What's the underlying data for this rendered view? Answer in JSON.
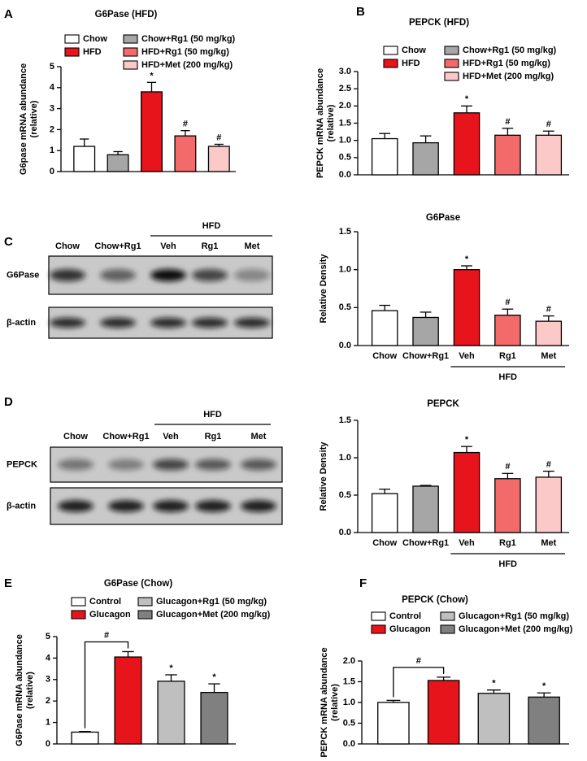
{
  "chart_data": [
    {
      "type": "bar",
      "panel": "A",
      "title": "G6Pase (HFD)",
      "ylabel": [
        "G6pase mRNA abundance",
        "(relative)"
      ],
      "categories": [
        "Chow",
        "Chow+Rg1 (50 mg/kg)",
        "HFD",
        "HFD+Rg1 (50 mg/kg)",
        "HFD+Met (200 mg/kg)"
      ],
      "values": [
        1.2,
        0.8,
        3.8,
        1.7,
        1.2
      ],
      "errors": [
        0.35,
        0.15,
        0.45,
        0.25,
        0.1
      ],
      "markers": [
        null,
        null,
        "*",
        "#",
        "#"
      ],
      "colors": [
        "#ffffff",
        "#a6a6a6",
        "#e8141c",
        "#f26a6a",
        "#fcc9c9"
      ],
      "ylim": [
        0,
        5
      ],
      "yticks": [
        0,
        1,
        2,
        3,
        4,
        5
      ],
      "legend": true
    },
    {
      "type": "bar",
      "panel": "B",
      "title": "PEPCK (HFD)",
      "ylabel": [
        "PEPCK mRNA abundance",
        "(relative)"
      ],
      "categories": [
        "Chow",
        "Chow+Rg1 (50 mg/kg)",
        "HFD",
        "HFD+Rg1 (50 mg/kg)",
        "HFD+Met (200 mg/kg)"
      ],
      "values": [
        1.05,
        0.93,
        1.8,
        1.15,
        1.15
      ],
      "errors": [
        0.15,
        0.2,
        0.2,
        0.2,
        0.12
      ],
      "markers": [
        null,
        null,
        "*",
        "#",
        "#"
      ],
      "colors": [
        "#ffffff",
        "#a6a6a6",
        "#e8141c",
        "#f26a6a",
        "#fcc9c9"
      ],
      "ylim": [
        0,
        3
      ],
      "yticks": [
        {
          "value": 0,
          "label": "0.0"
        },
        0.5,
        {
          "value": 1,
          "label": "1.0"
        },
        1.5,
        {
          "value": 2,
          "label": "2.0"
        },
        2.5,
        {
          "value": 3,
          "label": "3.0"
        }
      ],
      "legend": true
    },
    {
      "type": "bar",
      "title": "G6Pase",
      "ylabel": [
        "Relative Density"
      ],
      "group_label": "HFD",
      "categories": [
        "Chow",
        "Chow+Rg1",
        "Veh",
        "Rg1",
        "Met"
      ],
      "values": [
        0.46,
        0.37,
        1.0,
        0.4,
        0.32
      ],
      "errors": [
        0.07,
        0.07,
        0.05,
        0.08,
        0.07
      ],
      "markers": [
        null,
        null,
        "*",
        "#",
        "#"
      ],
      "colors": [
        "#ffffff",
        "#a6a6a6",
        "#e8141c",
        "#f26a6a",
        "#fcc9c9"
      ],
      "ylim": [
        0,
        1.5
      ],
      "yticks": [
        {
          "value": 0,
          "label": "0.0"
        },
        0.5,
        {
          "value": 1,
          "label": "1.0"
        },
        1.5
      ],
      "legend": false
    },
    {
      "type": "bar",
      "title": "PEPCK",
      "ylabel": [
        "Relative Density"
      ],
      "group_label": "HFD",
      "categories": [
        "Chow",
        "Chow+Rg1",
        "Veh",
        "Rg1",
        "Met"
      ],
      "values": [
        0.52,
        0.62,
        1.07,
        0.72,
        0.74
      ],
      "errors": [
        0.06,
        0.01,
        0.08,
        0.07,
        0.08
      ],
      "markers": [
        null,
        null,
        "*",
        "#",
        "#"
      ],
      "colors": [
        "#ffffff",
        "#a6a6a6",
        "#e8141c",
        "#f26a6a",
        "#fcc9c9"
      ],
      "ylim": [
        0,
        1.5
      ],
      "yticks": [
        {
          "value": 0,
          "label": "0.0"
        },
        0.5,
        {
          "value": 1,
          "label": "1.0"
        },
        1.5
      ],
      "legend": false
    },
    {
      "type": "bar",
      "panel": "E",
      "title": "G6Pase (Chow)",
      "ylabel": [
        "G6Pase mRNA abundance",
        "(relative)"
      ],
      "categories": [
        "Control",
        "Glucagon",
        "Glucagon+Rg1 (50 mg/kg)",
        "Glucagon+Met (200 mg/kg)"
      ],
      "values": [
        0.55,
        4.05,
        2.92,
        2.4
      ],
      "errors": [
        0.03,
        0.25,
        0.3,
        0.4
      ],
      "markers": [
        null,
        null,
        "*",
        "*"
      ],
      "comparison": "#",
      "colors": [
        "#ffffff",
        "#e8141c",
        "#bfbfbf",
        "#808080"
      ],
      "ylim": [
        0,
        5
      ],
      "yticks": [
        0,
        1,
        2,
        3,
        4,
        5
      ],
      "legend": true
    },
    {
      "type": "bar",
      "panel": "F",
      "title": "PEPCK (Chow)",
      "ylabel": [
        "PEPCK mRNA abundance",
        "(relative)"
      ],
      "categories": [
        "Control",
        "Glucagon",
        "Glucagon+Rg1 (50 mg/kg)",
        "Glucagon+Met (200 mg/kg)"
      ],
      "values": [
        1.0,
        1.53,
        1.22,
        1.13
      ],
      "errors": [
        0.05,
        0.08,
        0.08,
        0.1
      ],
      "markers": [
        null,
        null,
        "*",
        "*"
      ],
      "comparison": "#",
      "colors": [
        "#ffffff",
        "#e8141c",
        "#bfbfbf",
        "#808080"
      ],
      "ylim": [
        0,
        2
      ],
      "yticks": [
        {
          "value": 0,
          "label": "0.0"
        },
        0.5,
        {
          "value": 1,
          "label": "1.0"
        },
        1.5,
        {
          "value": 2,
          "label": "2.0"
        }
      ],
      "legend": true
    }
  ],
  "blots": [
    {
      "panel": "C",
      "group_label": "HFD",
      "lanes": [
        "Chow",
        "Chow+Rg1",
        "Veh",
        "Rg1",
        "Met"
      ],
      "rows": [
        "G6Pase",
        "β-actin"
      ]
    },
    {
      "panel": "D",
      "group_label": "HFD",
      "lanes": [
        "Chow",
        "Chow+Rg1",
        "Veh",
        "Rg1",
        "Met"
      ],
      "rows": [
        "PEPCK",
        "β-actin"
      ]
    }
  ]
}
